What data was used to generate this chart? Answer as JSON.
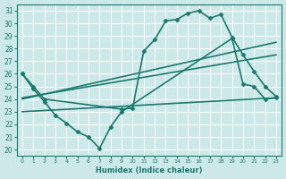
{
  "xlabel": "Humidex (Indice chaleur)",
  "bg_color": "#cce8e8",
  "line_color": "#1a7a6e",
  "grid_color": "#ffffff",
  "xlim": [
    -0.5,
    23.5
  ],
  "ylim": [
    19.5,
    31.5
  ],
  "xticks": [
    0,
    1,
    2,
    3,
    4,
    5,
    6,
    7,
    8,
    9,
    10,
    11,
    12,
    13,
    14,
    15,
    16,
    17,
    18,
    19,
    20,
    21,
    22,
    23
  ],
  "yticks": [
    20,
    21,
    22,
    23,
    24,
    25,
    26,
    27,
    28,
    29,
    30,
    31
  ],
  "series_with_markers": [
    {
      "x": [
        0,
        1,
        2,
        3,
        4,
        5,
        6,
        7,
        8,
        9,
        19,
        20,
        21,
        22,
        23
      ],
      "y": [
        26.0,
        24.8,
        23.8,
        22.7,
        22.1,
        21.4,
        21.0,
        20.1,
        21.8,
        23.0,
        28.8,
        25.2,
        25.0,
        24.0,
        24.1
      ]
    },
    {
      "x": [
        0,
        1,
        2,
        9,
        10,
        11,
        12,
        13,
        14,
        15,
        16,
        17,
        18,
        19,
        20,
        21,
        22,
        23
      ],
      "y": [
        26.0,
        25.0,
        24.0,
        23.2,
        23.3,
        27.8,
        28.7,
        30.2,
        30.3,
        30.8,
        31.0,
        30.4,
        30.7,
        28.9,
        27.5,
        26.2,
        25.0,
        24.2
      ]
    }
  ],
  "series_lines": [
    {
      "x": [
        0,
        23
      ],
      "y": [
        24.0,
        28.5
      ]
    },
    {
      "x": [
        0,
        23
      ],
      "y": [
        24.1,
        27.5
      ]
    },
    {
      "x": [
        0,
        23
      ],
      "y": [
        23.0,
        24.1
      ]
    }
  ]
}
